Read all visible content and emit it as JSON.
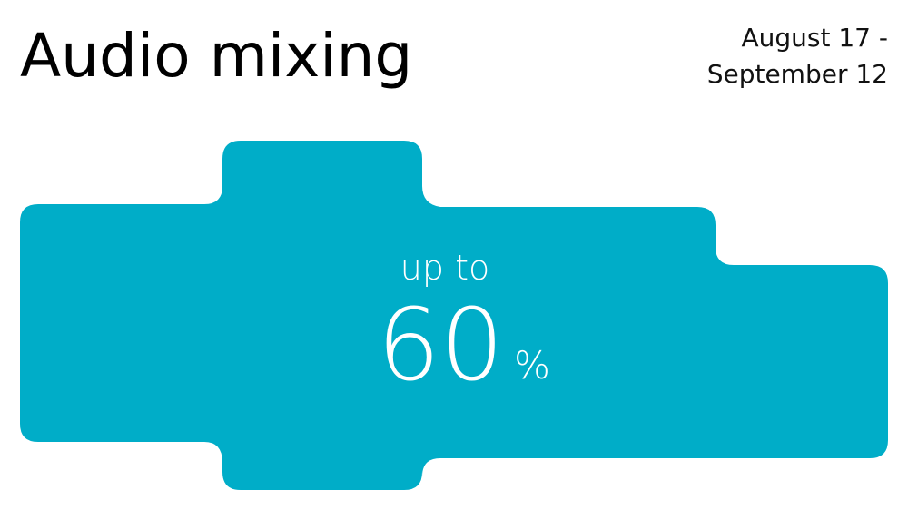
{
  "banner": {
    "title": "Audio mixing",
    "dates": [
      "August 17 -",
      "September 12"
    ],
    "accent_color": "#00ADC8"
  },
  "promo": {
    "prefix": "up to",
    "value": "60",
    "unit": "%"
  }
}
